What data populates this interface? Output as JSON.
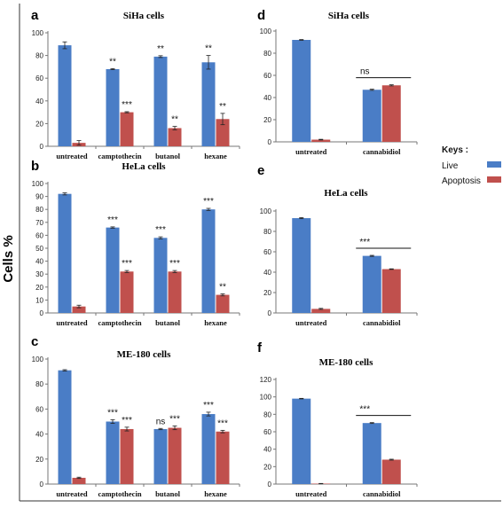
{
  "figure": {
    "y_axis_label": "Cells %",
    "keys_title": "Keys :",
    "keys": [
      {
        "label": "Live",
        "color": "#4a7dc6"
      },
      {
        "label": "Apoptosis",
        "color": "#c0504d"
      }
    ]
  },
  "chart_data": [
    {
      "panel": "a",
      "title": "SiHa cells",
      "type": "bar",
      "ylim": [
        0,
        100
      ],
      "yticks": [
        0,
        20,
        40,
        60,
        80,
        100
      ],
      "categories": [
        "untreated",
        "camptothecin",
        "butanol",
        "hexane"
      ],
      "series": [
        {
          "name": "Live",
          "values": [
            89,
            68,
            79,
            74
          ],
          "errors": [
            3,
            0.5,
            0.8,
            6
          ]
        },
        {
          "name": "Apoptosis",
          "values": [
            3,
            30,
            16,
            24
          ],
          "errors": [
            2,
            0.5,
            1.5,
            5
          ]
        }
      ],
      "annotations": [
        [
          "",
          ""
        ],
        [
          "**",
          "***"
        ],
        [
          "**",
          "**"
        ],
        [
          "**",
          "**"
        ]
      ]
    },
    {
      "panel": "b",
      "title": "HeLa cells",
      "type": "bar",
      "ylim": [
        0,
        100
      ],
      "yticks": [
        0,
        10,
        20,
        30,
        40,
        50,
        60,
        70,
        80,
        90,
        100
      ],
      "categories": [
        "untreated",
        "camptothecin",
        "butanol",
        "hexane"
      ],
      "series": [
        {
          "name": "Live",
          "values": [
            92,
            66,
            58,
            80
          ],
          "errors": [
            0.8,
            0.5,
            0.8,
            0.8
          ]
        },
        {
          "name": "Apoptosis",
          "values": [
            5,
            32,
            32,
            14
          ],
          "errors": [
            1,
            0.8,
            0.8,
            0.8
          ]
        }
      ],
      "annotations": [
        [
          "",
          ""
        ],
        [
          "***",
          "***"
        ],
        [
          "***",
          "***"
        ],
        [
          "***",
          "**"
        ]
      ]
    },
    {
      "panel": "c",
      "title": "ME-180 cells",
      "type": "bar",
      "ylim": [
        0,
        100
      ],
      "yticks": [
        0,
        20,
        40,
        60,
        80,
        100
      ],
      "categories": [
        "untreated",
        "camptothecin",
        "butanol",
        "hexane"
      ],
      "series": [
        {
          "name": "Live",
          "values": [
            91,
            50,
            44,
            56
          ],
          "errors": [
            0.5,
            1.5,
            0.5,
            1.5
          ]
        },
        {
          "name": "Apoptosis",
          "values": [
            5,
            44,
            45,
            42
          ],
          "errors": [
            0.5,
            1.5,
            1.5,
            1
          ]
        }
      ],
      "annotations": [
        [
          "",
          ""
        ],
        [
          "***",
          "***"
        ],
        [
          "ns",
          "***"
        ],
        [
          "***",
          "***"
        ]
      ]
    },
    {
      "panel": "d",
      "title": "SiHa cells",
      "type": "bar",
      "ylim": [
        0,
        100
      ],
      "yticks": [
        0,
        20,
        40,
        60,
        80,
        100
      ],
      "categories": [
        "untreated",
        "cannabidiol"
      ],
      "series": [
        {
          "name": "Live",
          "values": [
            92,
            47
          ],
          "errors": [
            0.3,
            0.5
          ]
        },
        {
          "name": "Apoptosis",
          "values": [
            2,
            51
          ],
          "errors": [
            0.3,
            0.5
          ]
        }
      ],
      "annotations": [
        [
          "",
          ""
        ],
        [
          "ns",
          ""
        ]
      ],
      "bracket_group": 1
    },
    {
      "panel": "e",
      "title": "HeLa cells",
      "type": "bar",
      "ylim": [
        0,
        100
      ],
      "yticks": [
        0,
        20,
        40,
        60,
        80,
        100
      ],
      "categories": [
        "untreated",
        "cannabidiol"
      ],
      "series": [
        {
          "name": "Live",
          "values": [
            93,
            56
          ],
          "errors": [
            0.5,
            0.5
          ]
        },
        {
          "name": "Apoptosis",
          "values": [
            4,
            43
          ],
          "errors": [
            0.5,
            0.3
          ]
        }
      ],
      "annotations": [
        [
          "",
          ""
        ],
        [
          "***",
          ""
        ]
      ],
      "bracket_group": 1
    },
    {
      "panel": "f",
      "title": "ME-180 cells",
      "type": "bar",
      "ylim": [
        0,
        120
      ],
      "yticks": [
        0,
        20,
        40,
        60,
        80,
        100,
        120
      ],
      "categories": [
        "untreated",
        "cannabidiol"
      ],
      "series": [
        {
          "name": "Live",
          "values": [
            98,
            70
          ],
          "errors": [
            0.3,
            0.5
          ]
        },
        {
          "name": "Apoptosis",
          "values": [
            0.5,
            28
          ],
          "errors": [
            0.2,
            0.5
          ]
        }
      ],
      "annotations": [
        [
          "",
          ""
        ],
        [
          "***",
          ""
        ]
      ],
      "bracket_group": 1
    }
  ]
}
